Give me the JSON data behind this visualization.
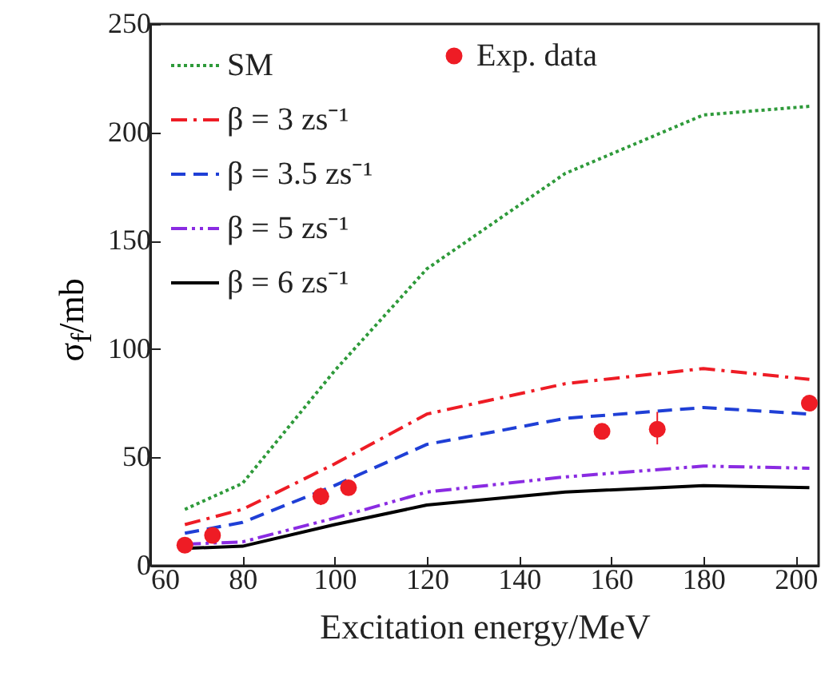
{
  "chart_data": {
    "type": "line",
    "xlabel": "Excitation energy/MeV",
    "ylabel": "σ$_{f}$/mb",
    "xlim": [
      60,
      205
    ],
    "xticks": [
      60,
      80,
      100,
      120,
      140,
      160,
      180,
      200
    ],
    "ylim": [
      0,
      250
    ],
    "yticks": [
      0,
      50,
      100,
      150,
      200,
      250
    ],
    "grid": false,
    "legend": "top left",
    "series": [
      {
        "name": "SM",
        "color": "#2e9a3a",
        "line_style": "dotted",
        "x": [
          67.5,
          80,
          100,
          120,
          150,
          180,
          203
        ],
        "values": [
          26,
          38,
          90,
          137,
          181,
          208,
          212
        ]
      },
      {
        "name": "Exp. data",
        "type": "scatter",
        "marker": "circle",
        "color": "#ee1c25",
        "x": [
          67.5,
          73.5,
          97,
          103,
          158,
          170,
          203
        ],
        "values": [
          9.5,
          14,
          32,
          36,
          62,
          63,
          75
        ],
        "errors": [
          null,
          null,
          4,
          null,
          null,
          [
            56,
            71
          ],
          null
        ]
      },
      {
        "name": "β = 3 zs⁻¹",
        "color": "#ee1c25",
        "line_style": "dashdot",
        "x": [
          67.5,
          80,
          100,
          120,
          150,
          180,
          203
        ],
        "values": [
          19,
          26,
          47,
          70,
          84,
          91,
          86
        ]
      },
      {
        "name": "β = 3.5 zs⁻¹",
        "color": "#1f3fd6",
        "line_style": "dashed",
        "x": [
          67.5,
          80,
          100,
          120,
          150,
          180,
          203
        ],
        "values": [
          15,
          20,
          37,
          56,
          68,
          73,
          70
        ]
      },
      {
        "name": "β = 5 zs⁻¹",
        "color": "#8a2be2",
        "line_style": "dashdotdot",
        "x": [
          67.5,
          80,
          100,
          120,
          150,
          180,
          203
        ],
        "values": [
          10,
          11,
          22,
          34,
          41,
          46,
          45
        ]
      },
      {
        "name": "β = 6 zs⁻¹",
        "color": "#000000",
        "line_style": "solid",
        "x": [
          67.5,
          80,
          100,
          120,
          150,
          180,
          203
        ],
        "values": [
          8,
          9,
          19,
          28,
          34,
          37,
          36
        ]
      }
    ]
  }
}
